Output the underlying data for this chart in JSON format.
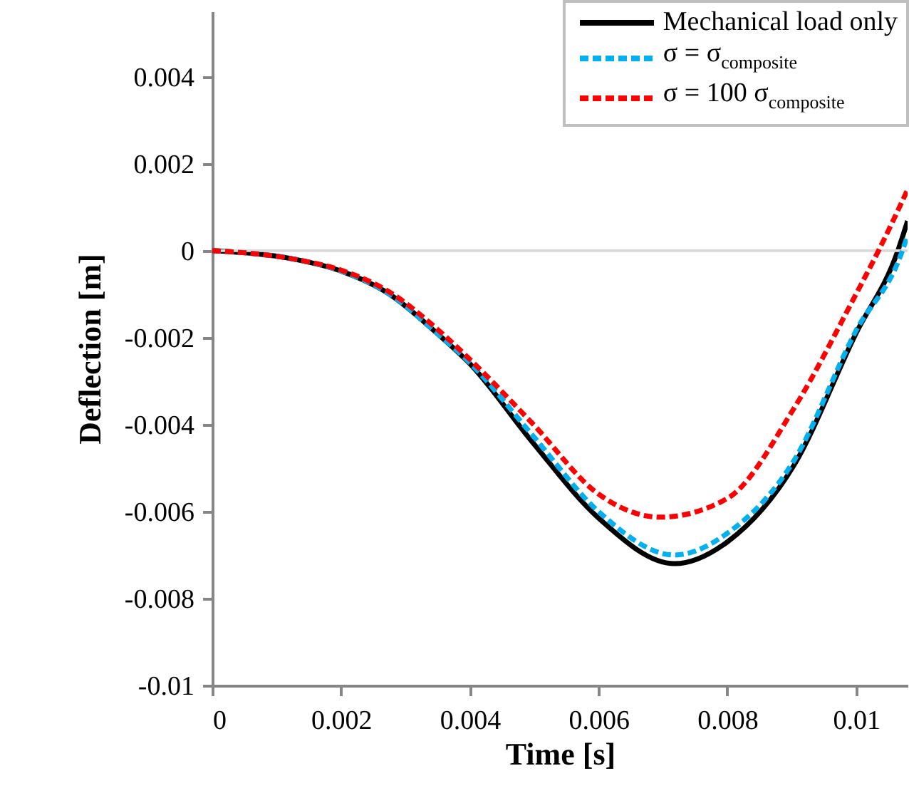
{
  "chart_data": {
    "type": "line",
    "xlabel": "Time [s]",
    "ylabel": "Deflection [m]",
    "xlim": [
      0,
      0.0108
    ],
    "ylim": [
      -0.01,
      0.0055
    ],
    "xticks": [
      0,
      0.002,
      0.004,
      0.006,
      0.008,
      0.01
    ],
    "yticks": [
      -0.01,
      -0.008,
      -0.006,
      -0.004,
      -0.002,
      0,
      0.002,
      0.004
    ],
    "grid": false,
    "legend": "top right",
    "ref_lines": [
      {
        "axis": "y",
        "value": 0,
        "color": "#d9d9d9"
      }
    ],
    "series": [
      {
        "name": "Mechanical load only",
        "color": "#000000",
        "line_style": "solid",
        "x": [
          0,
          0.00128,
          0.002,
          0.00275,
          0.00349,
          0.004,
          0.00497,
          0.006,
          0.00718,
          0.008,
          0.00903,
          0.01,
          0.01065,
          0.0108
        ],
        "values": [
          0,
          -0.0002,
          -0.00047,
          -0.001,
          -0.0019,
          -0.0026,
          -0.0044,
          -0.00615,
          -0.0072,
          -0.0067,
          -0.00495,
          -0.0019,
          0,
          0.00068
        ]
      },
      {
        "name": "σ = σ$_{composite}$",
        "color": "#00b0f0",
        "line_style": "dashed",
        "x": [
          0,
          0.00128,
          0.002,
          0.00275,
          0.00349,
          0.004,
          0.00497,
          0.006,
          0.00718,
          0.008,
          0.00903,
          0.01,
          0.01072,
          0.0108
        ],
        "values": [
          0,
          -0.0002,
          -0.00047,
          -0.001,
          -0.0019,
          -0.00258,
          -0.00424,
          -0.006,
          -0.007,
          -0.0065,
          -0.00484,
          -0.00184,
          0,
          0.00035
        ]
      },
      {
        "name": "σ = 100 σ$_{composite}$",
        "color": "#ff0000",
        "line_style": "dashed",
        "x": [
          0,
          0.00128,
          0.002,
          0.00275,
          0.00349,
          0.004,
          0.00497,
          0.006,
          0.00696,
          0.008,
          0.00903,
          0.01,
          0.01035,
          0.0108
        ],
        "values": [
          0,
          -0.0002,
          -0.00045,
          -0.00095,
          -0.0018,
          -0.0025,
          -0.00397,
          -0.0056,
          -0.00613,
          -0.0057,
          -0.00364,
          -0.001,
          0,
          0.0014
        ]
      }
    ]
  }
}
